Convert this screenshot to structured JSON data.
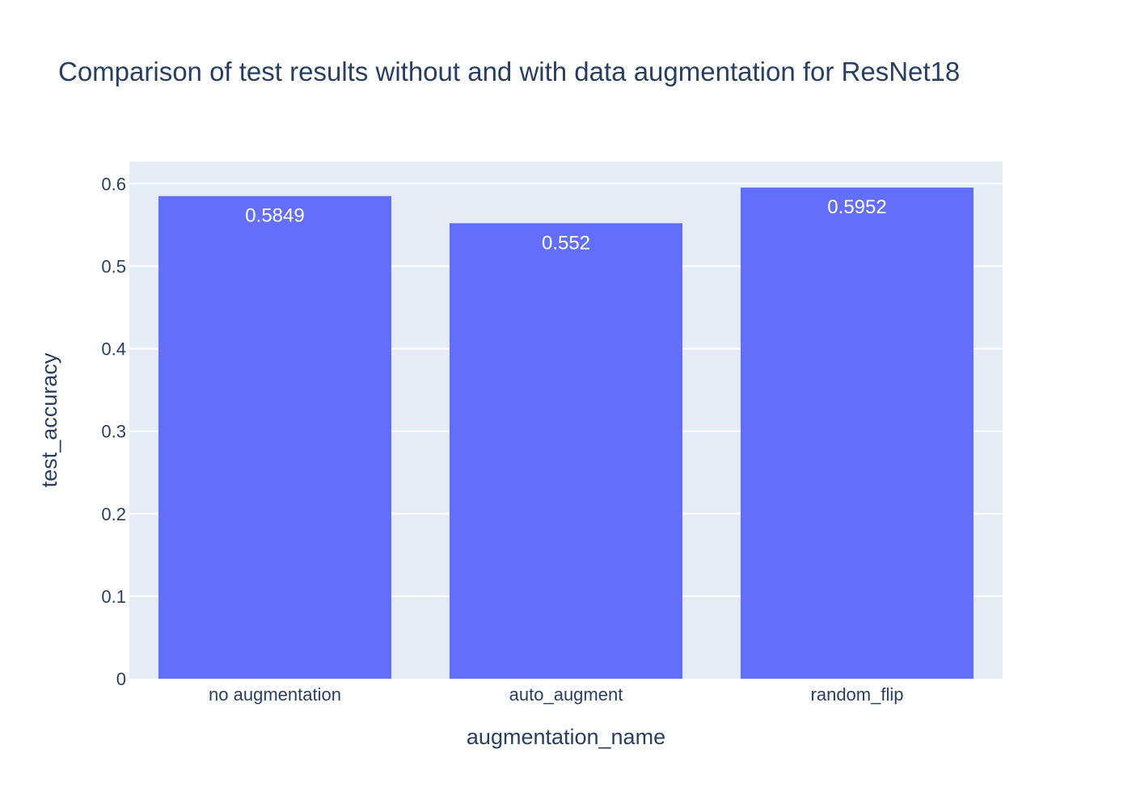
{
  "chart_data": {
    "type": "bar",
    "title": "Comparison of test results without and with data augmentation for ResNet18",
    "xlabel": "augmentation_name",
    "ylabel": "test_accuracy",
    "categories": [
      "no augmentation",
      "auto_augment",
      "random_flip"
    ],
    "values": [
      0.5849,
      0.552,
      0.5952
    ],
    "data_labels": [
      "0.5849",
      "0.552",
      "0.5952"
    ],
    "ylim": [
      0,
      0.6267
    ],
    "yticks": [
      0,
      0.1,
      0.2,
      0.3,
      0.4,
      0.5,
      0.6
    ],
    "ytick_labels": [
      "0",
      "0.1",
      "0.2",
      "0.3",
      "0.4",
      "0.5",
      "0.6"
    ],
    "grid": true,
    "colors": {
      "bar": "#636efa",
      "plot_background": "#e5ecf6",
      "gridline": "#ffffff",
      "text": "#2a3f5f",
      "bar_label": "#ffffff"
    }
  }
}
